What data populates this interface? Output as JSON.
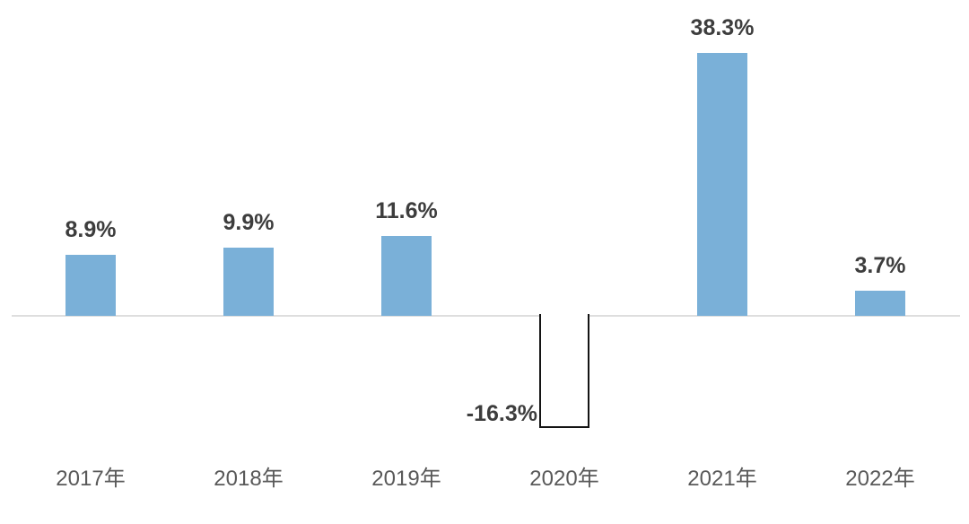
{
  "chart_data": {
    "type": "bar",
    "categories": [
      "2017年",
      "2018年",
      "2019年",
      "2020年",
      "2021年",
      "2022年"
    ],
    "values": [
      8.9,
      9.9,
      11.6,
      -16.3,
      38.3,
      3.7
    ],
    "value_labels": [
      "8.9%",
      "9.9%",
      "11.6%",
      "-16.3%",
      "38.3%",
      "3.7%"
    ],
    "title": "",
    "xlabel": "",
    "ylabel": "",
    "unit": "%",
    "ylim": [
      -20,
      42
    ],
    "grid": false,
    "legend": false,
    "axis_line_color": "#dedede",
    "bar_color_positive": "#7ab0d8",
    "bar_fill_negative": "#ffffff",
    "bar_border_negative": "#141414",
    "value_label_color": "#3d3d3d",
    "axis_label_color": "#595959",
    "background_color": "#ffffff"
  }
}
